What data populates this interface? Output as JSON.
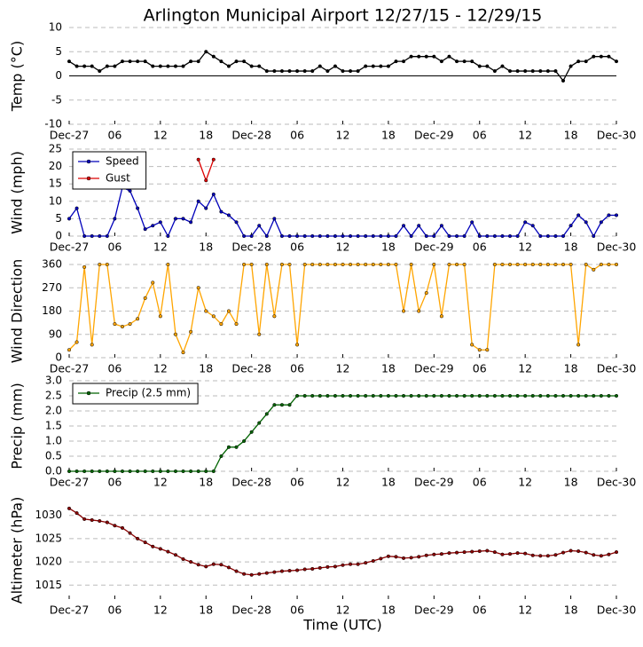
{
  "chart_data": [
    {
      "type": "line",
      "title": "Arlington Municipal Airport 12/27/15 - 12/29/15",
      "ylabel": "Temp ($^\\circ$C)",
      "zero_line": true,
      "xlim": [
        0,
        72
      ],
      "xticks": [
        {
          "value": 0,
          "label": "Dec-27"
        },
        {
          "value": 6,
          "label": "06"
        },
        {
          "value": 12,
          "label": "12"
        },
        {
          "value": 18,
          "label": "18"
        },
        {
          "value": 24,
          "label": "Dec-28"
        },
        {
          "value": 30,
          "label": "06"
        },
        {
          "value": 36,
          "label": "12"
        },
        {
          "value": 42,
          "label": "18"
        },
        {
          "value": 48,
          "label": "Dec-29"
        },
        {
          "value": 54,
          "label": "06"
        },
        {
          "value": 60,
          "label": "12"
        },
        {
          "value": 66,
          "label": "18"
        },
        {
          "value": 72,
          "label": "Dec-30"
        }
      ],
      "ylim": [
        -10,
        10
      ],
      "yticks": [
        -10,
        -5,
        0,
        5,
        10
      ],
      "grid": true,
      "x": [
        0,
        1,
        2,
        3,
        4,
        5,
        6,
        7,
        8,
        9,
        10,
        11,
        12,
        13,
        14,
        15,
        16,
        17,
        18,
        19,
        20,
        21,
        22,
        23,
        24,
        25,
        26,
        27,
        28,
        29,
        30,
        31,
        32,
        33,
        34,
        35,
        36,
        37,
        38,
        39,
        40,
        41,
        42,
        43,
        44,
        45,
        46,
        47,
        48,
        49,
        50,
        51,
        52,
        53,
        54,
        55,
        56,
        57,
        58,
        59,
        60,
        61,
        62,
        63,
        64,
        65,
        66,
        67,
        68,
        69,
        70,
        71,
        72
      ],
      "series": [
        {
          "color": "#000000",
          "values": [
            3,
            2,
            2,
            2,
            1,
            2,
            2,
            3,
            3,
            3,
            3,
            2,
            2,
            2,
            2,
            2,
            3,
            3,
            5,
            4,
            3,
            2,
            3,
            3,
            2,
            2,
            1,
            1,
            1,
            1,
            1,
            1,
            1,
            2,
            1,
            2,
            1,
            1,
            1,
            2,
            2,
            2,
            2,
            3,
            3,
            4,
            4,
            4,
            4,
            3,
            4,
            3,
            3,
            3,
            2,
            2,
            1,
            2,
            1,
            1,
            1,
            1,
            1,
            1,
            1,
            -1,
            2,
            3,
            3,
            4,
            4,
            4,
            3
          ]
        }
      ]
    },
    {
      "type": "line",
      "ylabel": "Wind (mph)",
      "legend": "upper left",
      "xlim": [
        0,
        72
      ],
      "xticks": [
        {
          "value": 0,
          "label": "Dec-27"
        },
        {
          "value": 6,
          "label": "06"
        },
        {
          "value": 12,
          "label": "12"
        },
        {
          "value": 18,
          "label": "18"
        },
        {
          "value": 24,
          "label": "Dec-28"
        },
        {
          "value": 30,
          "label": "06"
        },
        {
          "value": 36,
          "label": "12"
        },
        {
          "value": 42,
          "label": "18"
        },
        {
          "value": 48,
          "label": "Dec-29"
        },
        {
          "value": 54,
          "label": "06"
        },
        {
          "value": 60,
          "label": "12"
        },
        {
          "value": 66,
          "label": "18"
        },
        {
          "value": 72,
          "label": "Dec-30"
        }
      ],
      "ylim": [
        0,
        25
      ],
      "yticks": [
        0,
        5,
        10,
        15,
        20,
        25
      ],
      "grid": true,
      "x": [
        0,
        1,
        2,
        3,
        4,
        5,
        6,
        7,
        8,
        9,
        10,
        11,
        12,
        13,
        14,
        15,
        16,
        17,
        18,
        19,
        20,
        21,
        22,
        23,
        24,
        25,
        26,
        27,
        28,
        29,
        30,
        31,
        32,
        33,
        34,
        35,
        36,
        37,
        38,
        39,
        40,
        41,
        42,
        43,
        44,
        45,
        46,
        47,
        48,
        49,
        50,
        51,
        52,
        53,
        54,
        55,
        56,
        57,
        58,
        59,
        60,
        61,
        62,
        63,
        64,
        65,
        66,
        67,
        68,
        69,
        70,
        71,
        72
      ],
      "series": [
        {
          "name": "Speed",
          "color": "#0000bb",
          "values": [
            5,
            8,
            0,
            0,
            0,
            0,
            5,
            14,
            13,
            8,
            2,
            3,
            4,
            0,
            5,
            5,
            4,
            10,
            8,
            12,
            7,
            6,
            4,
            0,
            0,
            3,
            0,
            5,
            0,
            0,
            0,
            0,
            0,
            0,
            0,
            0,
            0,
            0,
            0,
            0,
            0,
            0,
            0,
            0,
            3,
            0,
            3,
            0,
            0,
            3,
            0,
            0,
            0,
            4,
            0,
            0,
            0,
            0,
            0,
            0,
            4,
            3,
            0,
            0,
            0,
            0,
            3,
            6,
            4,
            0,
            4,
            6,
            6
          ]
        },
        {
          "name": "Gust",
          "color": "#dd0000",
          "values": [
            null,
            null,
            null,
            null,
            null,
            null,
            null,
            null,
            null,
            null,
            null,
            null,
            null,
            null,
            null,
            null,
            null,
            22,
            16,
            22,
            null,
            null,
            null,
            null,
            null,
            null,
            null,
            null,
            null,
            null,
            null,
            null,
            null,
            null,
            null,
            null,
            null,
            null,
            null,
            null,
            null,
            null,
            null,
            null,
            null,
            null,
            null,
            null,
            null,
            null,
            null,
            null,
            null,
            null,
            null,
            null,
            null,
            null,
            null,
            null,
            null,
            null,
            null,
            null,
            null,
            null,
            null,
            null,
            null,
            null,
            null,
            null,
            null
          ]
        }
      ]
    },
    {
      "type": "line",
      "ylabel": "Wind Direction",
      "xlim": [
        0,
        72
      ],
      "xticks": [
        {
          "value": 0,
          "label": "Dec-27"
        },
        {
          "value": 6,
          "label": "06"
        },
        {
          "value": 12,
          "label": "12"
        },
        {
          "value": 18,
          "label": "18"
        },
        {
          "value": 24,
          "label": "Dec-28"
        },
        {
          "value": 30,
          "label": "06"
        },
        {
          "value": 36,
          "label": "12"
        },
        {
          "value": 42,
          "label": "18"
        },
        {
          "value": 48,
          "label": "Dec-29"
        },
        {
          "value": 54,
          "label": "06"
        },
        {
          "value": 60,
          "label": "12"
        },
        {
          "value": 66,
          "label": "18"
        },
        {
          "value": 72,
          "label": "Dec-30"
        }
      ],
      "ylim": [
        0,
        360
      ],
      "yticks": [
        0,
        90,
        180,
        270,
        360
      ],
      "grid": true,
      "x": [
        0,
        1,
        2,
        3,
        4,
        5,
        6,
        7,
        8,
        9,
        10,
        11,
        12,
        13,
        14,
        15,
        16,
        17,
        18,
        19,
        20,
        21,
        22,
        23,
        24,
        25,
        26,
        27,
        28,
        29,
        30,
        31,
        32,
        33,
        34,
        35,
        36,
        37,
        38,
        39,
        40,
        41,
        42,
        43,
        44,
        45,
        46,
        47,
        48,
        49,
        50,
        51,
        52,
        53,
        54,
        55,
        56,
        57,
        58,
        59,
        60,
        61,
        62,
        63,
        64,
        65,
        66,
        67,
        68,
        69,
        70,
        71,
        72
      ],
      "series": [
        {
          "color": "#ffa500",
          "values": [
            30,
            60,
            350,
            50,
            360,
            360,
            130,
            120,
            130,
            150,
            230,
            290,
            160,
            360,
            90,
            20,
            100,
            270,
            180,
            160,
            130,
            180,
            130,
            360,
            360,
            90,
            360,
            160,
            360,
            360,
            50,
            360,
            360,
            360,
            360,
            360,
            360,
            360,
            360,
            360,
            360,
            360,
            360,
            360,
            180,
            360,
            180,
            250,
            360,
            160,
            360,
            360,
            360,
            50,
            30,
            30,
            360,
            360,
            360,
            360,
            360,
            360,
            360,
            360,
            360,
            360,
            360,
            50,
            360,
            340,
            360,
            360,
            360
          ]
        }
      ]
    },
    {
      "type": "line",
      "ylabel": "Precip (mm)",
      "legend": "upper left",
      "xlim": [
        0,
        72
      ],
      "xticks": [
        {
          "value": 0,
          "label": "Dec-27"
        },
        {
          "value": 6,
          "label": "06"
        },
        {
          "value": 12,
          "label": "12"
        },
        {
          "value": 18,
          "label": "18"
        },
        {
          "value": 24,
          "label": "Dec-28"
        },
        {
          "value": 30,
          "label": "06"
        },
        {
          "value": 36,
          "label": "12"
        },
        {
          "value": 42,
          "label": "18"
        },
        {
          "value": 48,
          "label": "Dec-29"
        },
        {
          "value": 54,
          "label": "06"
        },
        {
          "value": 60,
          "label": "12"
        },
        {
          "value": 66,
          "label": "18"
        },
        {
          "value": 72,
          "label": "Dec-30"
        }
      ],
      "ylim": [
        0,
        3
      ],
      "yticks": [
        {
          "value": 0,
          "label": "0.0"
        },
        {
          "value": 0.5,
          "label": "0.5"
        },
        {
          "value": 1,
          "label": "1.0"
        },
        {
          "value": 1.5,
          "label": "1.5"
        },
        {
          "value": 2,
          "label": "2.0"
        },
        {
          "value": 2.5,
          "label": "2.5"
        },
        {
          "value": 3,
          "label": "3.0"
        }
      ],
      "grid": true,
      "x": [
        0,
        1,
        2,
        3,
        4,
        5,
        6,
        7,
        8,
        9,
        10,
        11,
        12,
        13,
        14,
        15,
        16,
        17,
        18,
        19,
        20,
        21,
        22,
        23,
        24,
        25,
        26,
        27,
        28,
        29,
        30,
        31,
        32,
        33,
        34,
        35,
        36,
        37,
        38,
        39,
        40,
        41,
        42,
        43,
        44,
        45,
        46,
        47,
        48,
        49,
        50,
        51,
        52,
        53,
        54,
        55,
        56,
        57,
        58,
        59,
        60,
        61,
        62,
        63,
        64,
        65,
        66,
        67,
        68,
        69,
        70,
        71,
        72
      ],
      "series": [
        {
          "name": "Precip (2.5 mm)",
          "color": "#006400",
          "values": [
            0,
            0,
            0,
            0,
            0,
            0,
            0,
            0,
            0,
            0,
            0,
            0,
            0,
            0,
            0,
            0,
            0,
            0,
            0,
            0,
            0.5,
            0.8,
            0.8,
            1.0,
            1.3,
            1.6,
            1.9,
            2.2,
            2.2,
            2.2,
            2.5,
            2.5,
            2.5,
            2.5,
            2.5,
            2.5,
            2.5,
            2.5,
            2.5,
            2.5,
            2.5,
            2.5,
            2.5,
            2.5,
            2.5,
            2.5,
            2.5,
            2.5,
            2.5,
            2.5,
            2.5,
            2.5,
            2.5,
            2.5,
            2.5,
            2.5,
            2.5,
            2.5,
            2.5,
            2.5,
            2.5,
            2.5,
            2.5,
            2.5,
            2.5,
            2.5,
            2.5,
            2.5,
            2.5,
            2.5,
            2.5,
            2.5,
            2.5
          ]
        }
      ]
    },
    {
      "type": "line",
      "ylabel": "Altimeter (hPa)",
      "xlabel": "Time (UTC)",
      "xlim": [
        0,
        72
      ],
      "xticks": [
        {
          "value": 0,
          "label": "Dec-27"
        },
        {
          "value": 6,
          "label": "06"
        },
        {
          "value": 12,
          "label": "12"
        },
        {
          "value": 18,
          "label": "18"
        },
        {
          "value": 24,
          "label": "Dec-28"
        },
        {
          "value": 30,
          "label": "06"
        },
        {
          "value": 36,
          "label": "12"
        },
        {
          "value": 42,
          "label": "18"
        },
        {
          "value": 48,
          "label": "Dec-29"
        },
        {
          "value": 54,
          "label": "06"
        },
        {
          "value": 60,
          "label": "12"
        },
        {
          "value": 66,
          "label": "18"
        },
        {
          "value": 72,
          "label": "Dec-30"
        }
      ],
      "ylim": [
        1012,
        1033
      ],
      "yticks": [
        1015,
        1020,
        1025,
        1030
      ],
      "grid": true,
      "x": [
        0,
        1,
        2,
        3,
        4,
        5,
        6,
        7,
        8,
        9,
        10,
        11,
        12,
        13,
        14,
        15,
        16,
        17,
        18,
        19,
        20,
        21,
        22,
        23,
        24,
        25,
        26,
        27,
        28,
        29,
        30,
        31,
        32,
        33,
        34,
        35,
        36,
        37,
        38,
        39,
        40,
        41,
        42,
        43,
        44,
        45,
        46,
        47,
        48,
        49,
        50,
        51,
        52,
        53,
        54,
        55,
        56,
        57,
        58,
        59,
        60,
        61,
        62,
        63,
        64,
        65,
        66,
        67,
        68,
        69,
        70,
        71,
        72
      ],
      "series": [
        {
          "color": "#8b0000",
          "values": [
            1031.5,
            1030.5,
            1029.2,
            1029,
            1028.8,
            1028.5,
            1027.8,
            1027.3,
            1026.2,
            1025,
            1024.2,
            1023.3,
            1022.8,
            1022.2,
            1021.5,
            1020.6,
            1020,
            1019.4,
            1019,
            1019.5,
            1019.4,
            1018.8,
            1018,
            1017.4,
            1017.2,
            1017.4,
            1017.6,
            1017.8,
            1018,
            1018.1,
            1018.2,
            1018.4,
            1018.5,
            1018.7,
            1018.9,
            1019,
            1019.3,
            1019.5,
            1019.5,
            1019.8,
            1020.2,
            1020.7,
            1021.2,
            1021.1,
            1020.8,
            1020.9,
            1021.1,
            1021.4,
            1021.6,
            1021.7,
            1021.9,
            1022,
            1022.1,
            1022.2,
            1022.3,
            1022.4,
            1022.1,
            1021.6,
            1021.7,
            1021.9,
            1021.8,
            1021.4,
            1021.3,
            1021.3,
            1021.5,
            1022,
            1022.4,
            1022.3,
            1022,
            1021.5,
            1021.3,
            1021.6,
            1022.1
          ]
        }
      ]
    }
  ]
}
